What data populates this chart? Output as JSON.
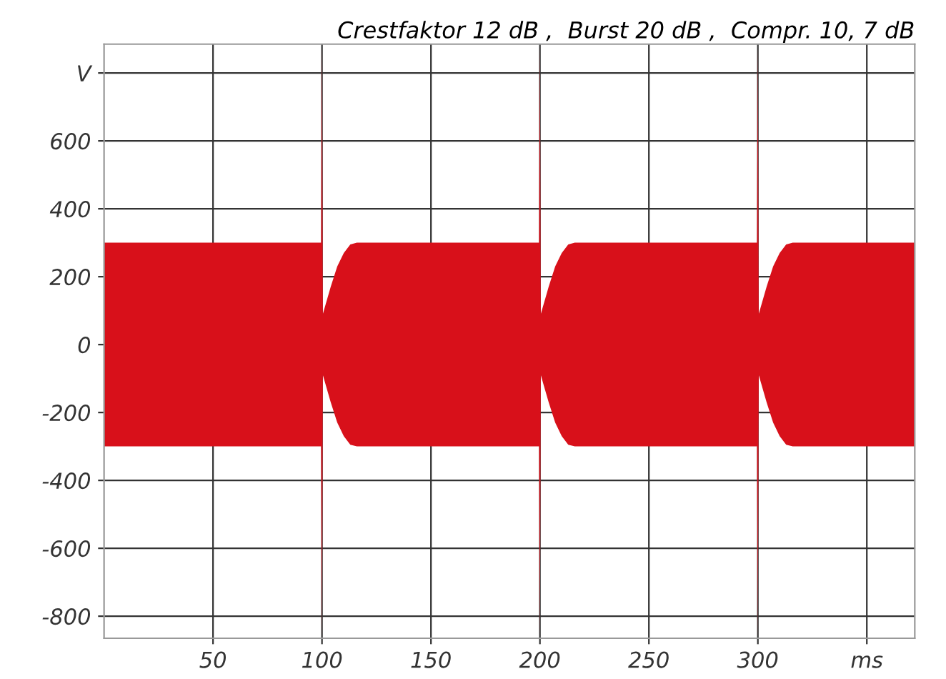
{
  "chart_data": {
    "type": "area",
    "title": "Crestfaktor 12 dB ,  Burst 20 dB ,  Compr. 10, 7 dB",
    "x": [
      0,
      99.6,
      100,
      100.4,
      104,
      107,
      110,
      113,
      116,
      199.6,
      200,
      200.4,
      204,
      207,
      210,
      213,
      216,
      299.6,
      300,
      300.4,
      304,
      307,
      310,
      313,
      316,
      372
    ],
    "series": [
      {
        "color": "#d8101a",
        "values": [
          300,
          300,
          880,
          90,
          170,
          230,
          270,
          295,
          300,
          300,
          880,
          90,
          170,
          230,
          270,
          295,
          300,
          300,
          880,
          90,
          170,
          230,
          270,
          295,
          300,
          300
        ]
      },
      {
        "color": "#d8101a",
        "values": [
          -300,
          -300,
          -860,
          -90,
          -170,
          -230,
          -270,
          -295,
          -300,
          -300,
          -860,
          -90,
          -170,
          -230,
          -270,
          -295,
          -300,
          -300,
          -860,
          -90,
          -170,
          -230,
          -270,
          -295,
          -300,
          -300
        ]
      }
    ],
    "xlim": [
      0,
      372
    ],
    "xticks": [
      50,
      100,
      150,
      200,
      250,
      300,
      {
        "value": 350,
        "label": "ms"
      }
    ],
    "ylim": [
      -865,
      885
    ],
    "yticks": [
      -800,
      -600,
      -400,
      -200,
      0,
      200,
      400,
      600,
      {
        "value": 800,
        "label": "V"
      }
    ],
    "grid": true,
    "legend": false
  }
}
